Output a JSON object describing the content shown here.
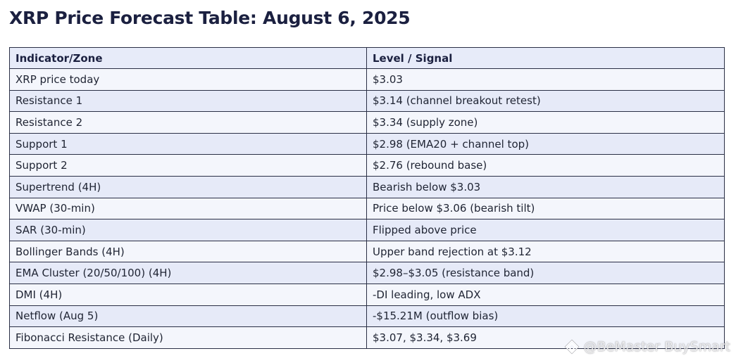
{
  "title": "XRP Price Forecast Table: August 6, 2025",
  "table": {
    "headers": [
      "Indicator/Zone",
      "Level / Signal"
    ],
    "rows": [
      [
        "XRP price today",
        "$3.03"
      ],
      [
        "Resistance 1",
        "$3.14 (channel breakout retest)"
      ],
      [
        "Resistance 2",
        "$3.34 (supply zone)"
      ],
      [
        "Support 1",
        "$2.98 (EMA20 + channel top)"
      ],
      [
        "Support 2",
        "$2.76 (rebound base)"
      ],
      [
        "Supertrend (4H)",
        "Bearish below $3.03"
      ],
      [
        "VWAP (30-min)",
        "Price below $3.06 (bearish tilt)"
      ],
      [
        "SAR (30-min)",
        "Flipped above price"
      ],
      [
        "Bollinger Bands (4H)",
        "Upper band rejection at $3.12"
      ],
      [
        "EMA Cluster (20/50/100) (4H)",
        "$2.98–$3.05 (resistance band)"
      ],
      [
        "DMI (4H)",
        "-DI leading, low ADX"
      ],
      [
        "Netflow (Aug 5)",
        "-$15.21M (outflow bias)"
      ],
      [
        "Fibonacci Resistance (Daily)",
        "$3.07, $3.34, $3.69"
      ]
    ]
  },
  "watermark": {
    "text": "@BeMaster BuySmart",
    "icon": "diamond-logo-icon"
  },
  "colors": {
    "title": "#1b2040",
    "header_bg": "#e7ebf9",
    "row_odd_bg": "#f4f6fc",
    "row_even_bg": "#e6eaf8",
    "border": "#2a2f45"
  }
}
